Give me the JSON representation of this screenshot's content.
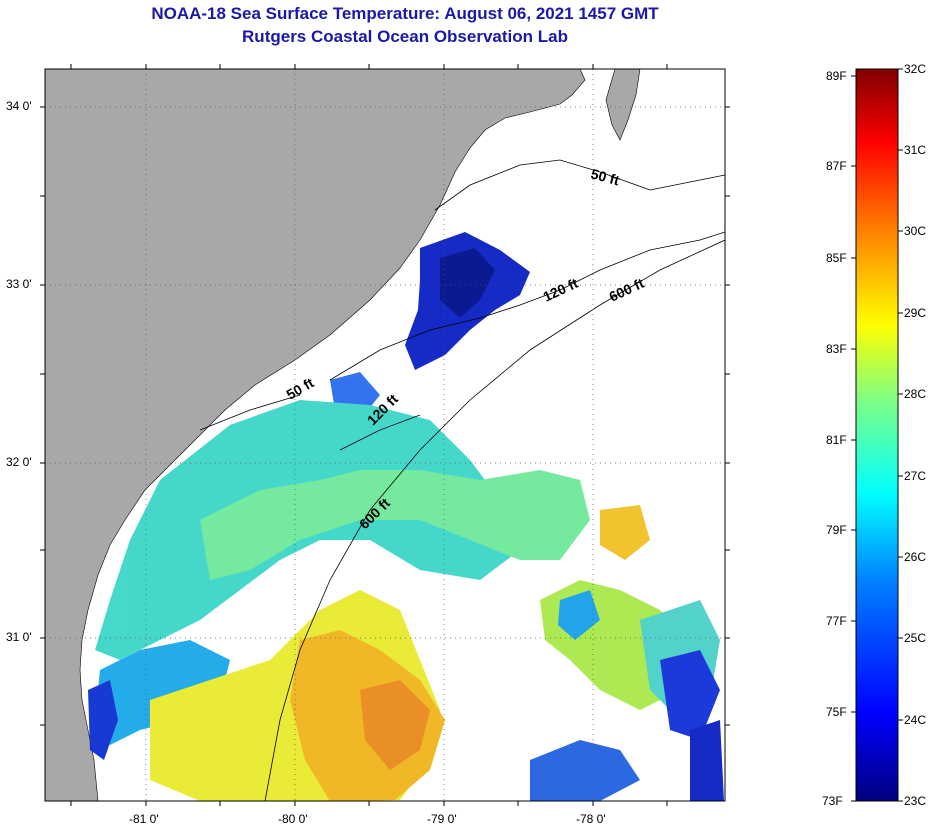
{
  "title": {
    "line1": "NOAA-18 Sea Surface Temperature:  August 06, 2021 1457 GMT",
    "line2": "Rutgers Coastal Ocean Observation Lab"
  },
  "map": {
    "lat_labels": [
      "34 0'",
      "33 0'",
      "32 0'",
      "31 0'"
    ],
    "lon_labels": [
      "-81 0'",
      "-80 0'",
      "-79 0'",
      "-78 0'"
    ],
    "isobaths": [
      {
        "label": "50 ft"
      },
      {
        "label": "120 ft"
      },
      {
        "label": "600 ft"
      },
      {
        "label": "50 ft"
      },
      {
        "label": "120 ft"
      },
      {
        "label": "600 ft"
      }
    ],
    "colors": {
      "land": "#a8a8a8",
      "ocean_no_data": "#ffffff",
      "frame": "#000000"
    }
  },
  "colorbar": {
    "fahrenheit_labels": [
      "89F",
      "87F",
      "85F",
      "83F",
      "81F",
      "79F",
      "77F",
      "75F",
      "73F"
    ],
    "celsius_labels": [
      "32C",
      "31C",
      "30C",
      "29C",
      "28C",
      "27C",
      "26C",
      "25C",
      "24C",
      "23C"
    ],
    "range_c": [
      23,
      32
    ],
    "range_f": [
      73,
      89
    ],
    "gradient_stops": [
      "#00007f",
      "#0000ff",
      "#0080ff",
      "#00ffff",
      "#80ff80",
      "#ffff00",
      "#ff8000",
      "#ff0000",
      "#7f0000"
    ]
  }
}
